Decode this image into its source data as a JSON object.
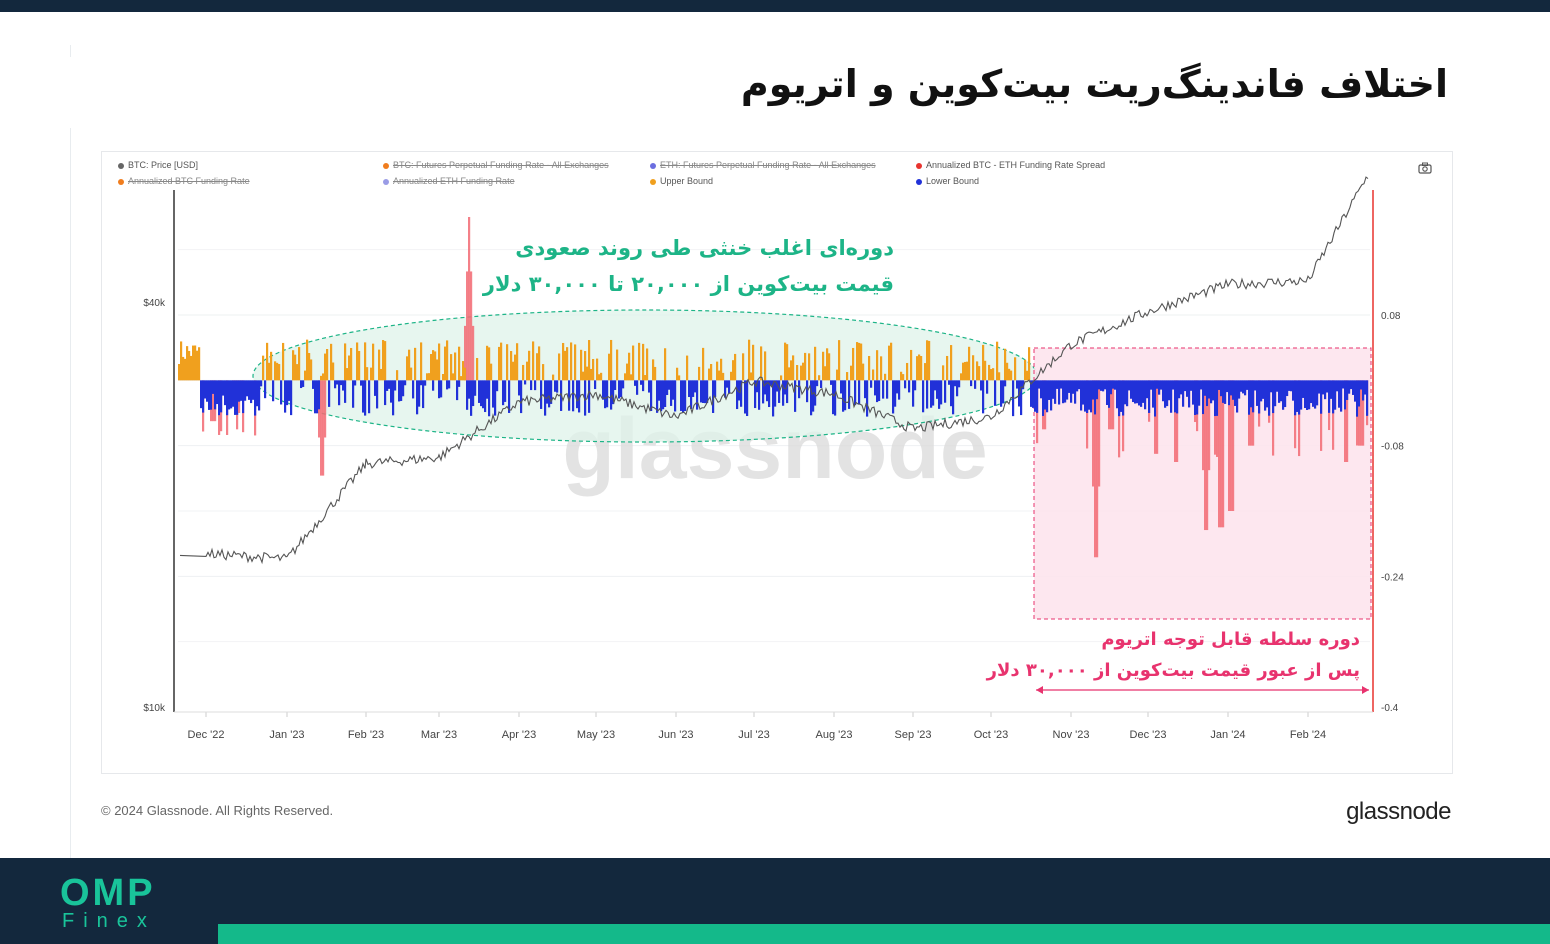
{
  "title": "اختلاف فاندینگ‌ریت بیت‌کوین و اتریوم",
  "legend": [
    {
      "label": "BTC: Price [USD]",
      "color": "#666666",
      "enabled": true
    },
    {
      "label": "BTC: Futures Perpetual Funding Rate - All Exchanges",
      "color": "#f07d1e",
      "enabled": false
    },
    {
      "label": "ETH: Futures Perpetual Funding Rate - All Exchanges",
      "color": "#6b6ee0",
      "enabled": false
    },
    {
      "label": "Annualized BTC - ETH Funding Rate Spread",
      "color": "#e8342f",
      "enabled": true
    },
    {
      "label": "Annualized BTC Funding Rate",
      "color": "#f07d1e",
      "enabled": false
    },
    {
      "label": "Annualized ETH Funding Rate",
      "color": "#9a9ce6",
      "enabled": false
    },
    {
      "label": "Upper Bound",
      "color": "#f0a01e",
      "enabled": true
    },
    {
      "label": "Lower Bound",
      "color": "#2131d8",
      "enabled": true
    }
  ],
  "watermark": "glassnode",
  "annotations": {
    "green_line1": "دوره‌ای اغلب خنثی طی روند صعودی",
    "green_line2": "قیمت بیت‌کوین از ۲۰,۰۰۰ تا ۳۰,۰۰۰ دلار",
    "pink_line1": "دوره سلطه قابل توجه اتریوم",
    "pink_line2": "پس از عبور قیمت بیت‌کوین از ۳۰,۰۰۰ دلار"
  },
  "copyright": "© 2024 Glassnode. All Rights Reserved.",
  "brand": "glassnode",
  "logo": {
    "line1": "OMP",
    "line2": "Finex"
  },
  "colors": {
    "green": "#1db487",
    "pink": "#e8336e",
    "upper": "#f0a01e",
    "lower": "#2131d8",
    "spread": "#f26a73",
    "price": "#555555"
  },
  "chart_data": {
    "type": "area",
    "x_tick_labels": [
      "Dec '22",
      "Jan '23",
      "Feb '23",
      "Mar '23",
      "Apr '23",
      "May '23",
      "Jun '23",
      "Jul '23",
      "Aug '23",
      "Sep '23",
      "Oct '23",
      "Nov '23",
      "Dec '23",
      "Jan '24",
      "Feb '24"
    ],
    "left_axis": {
      "ticks": [
        "$40k",
        "$10k"
      ],
      "scale": "log"
    },
    "right_axis": {
      "ticks": [
        "0.08",
        "-0.08",
        "-0.24",
        "-0.4"
      ],
      "range": [
        -0.4,
        0.16
      ]
    },
    "series": [
      {
        "name": "BTC: Price [USD]",
        "months": [
          "Dec '22",
          "Jan '23",
          "Feb '23",
          "Mar '23",
          "Apr '23",
          "May '23",
          "Jun '23",
          "Jul '23",
          "Aug '23",
          "Sep '23",
          "Oct '23",
          "Nov '23",
          "Dec '23",
          "Jan '24",
          "Feb '24",
          "Mar '24"
        ],
        "values": [
          16900,
          16600,
          23000,
          23500,
          28400,
          29200,
          27000,
          30500,
          29200,
          25900,
          27000,
          34600,
          38700,
          42500,
          43000,
          62500
        ]
      },
      {
        "name": "Upper Bound",
        "approx_max": 0.05
      },
      {
        "name": "Lower Bound",
        "approx_min": -0.05
      },
      {
        "name": "Annualized BTC - ETH Funding Rate Spread",
        "notable_values": [
          {
            "date": "Dec '22",
            "value": -0.06
          },
          {
            "date": "Feb '23",
            "value": -0.14
          },
          {
            "date": "Mar '23",
            "value": 0.2
          },
          {
            "date": "Nov '23",
            "value": -0.26
          },
          {
            "date": "Jan '24",
            "value": -0.22
          }
        ]
      }
    ]
  }
}
